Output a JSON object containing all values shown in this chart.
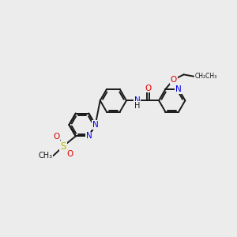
{
  "bg_color": "#ececec",
  "bond_color": "#1a1a1a",
  "line_width": 1.4,
  "atom_colors": {
    "N": "#0000ee",
    "O": "#dd0000",
    "S": "#bbbb00",
    "C": "#1a1a1a",
    "H": "#1a1a1a"
  },
  "font_size": 7.5
}
